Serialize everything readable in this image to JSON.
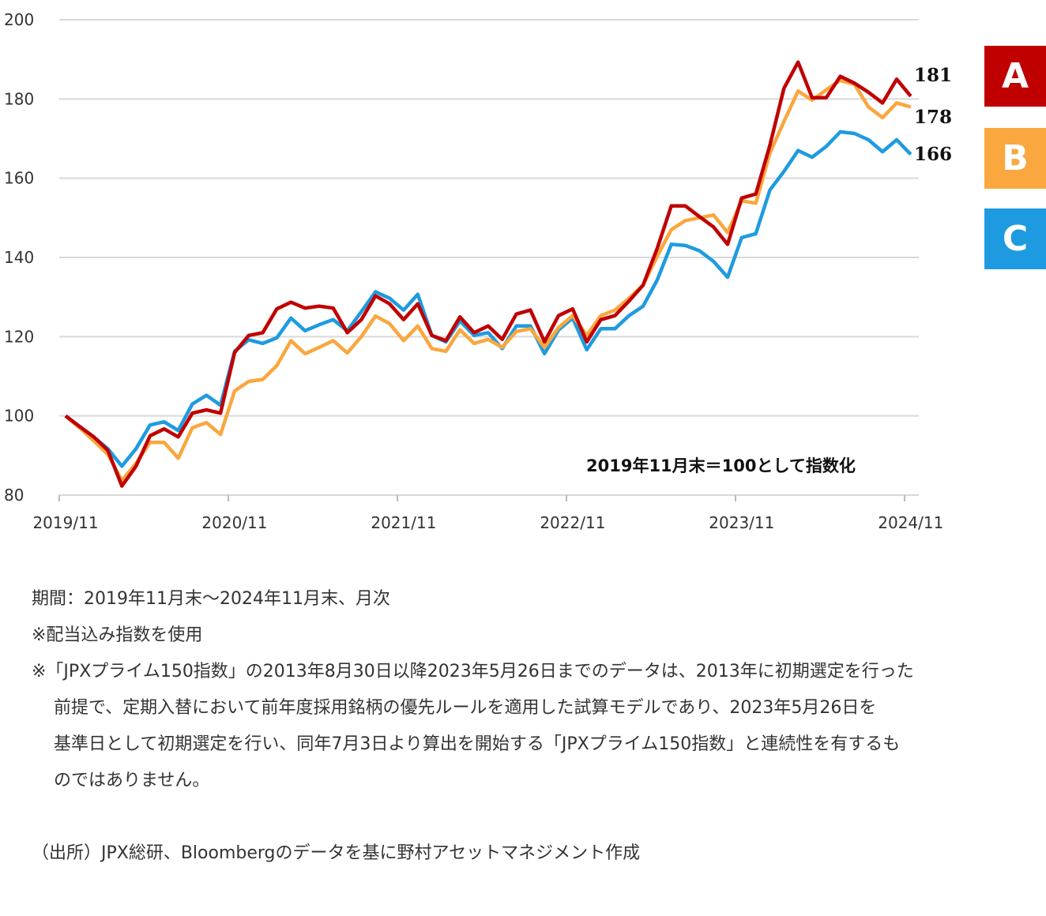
{
  "chart_data": {
    "type": "line",
    "title": "",
    "xlabel": "",
    "ylabel": "",
    "ylim": [
      80,
      200
    ],
    "yticks": [
      "80",
      "100",
      "120",
      "140",
      "160",
      "180",
      "200"
    ],
    "xticks": [
      "2019/11",
      "2020/11",
      "2021/11",
      "2022/11",
      "2023/11",
      "2024/11"
    ],
    "x_start": "2019/11",
    "x_end": "2024/11",
    "frequency": "monthly",
    "grid": true,
    "annotation": "2019年11月末＝100として指数化",
    "legend_placement": "right",
    "series": [
      {
        "name": "A",
        "color": "#C00000",
        "end_label": "181",
        "values": [
          100,
          97.3,
          94.7,
          91.3,
          82.3,
          87.3,
          95,
          96.7,
          94.7,
          100.7,
          101.5,
          100.7,
          116,
          120.3,
          121,
          127,
          128.7,
          127.2,
          127.7,
          127.2,
          121,
          124.3,
          130.3,
          128.3,
          124.3,
          128.3,
          120.3,
          119,
          125,
          121,
          122.7,
          119.3,
          125.7,
          126.7,
          118.7,
          125.3,
          127,
          118.7,
          124.3,
          125.3,
          129,
          133,
          142.3,
          153,
          153,
          150.3,
          147.7,
          143.3,
          155,
          156,
          168.3,
          182.7,
          189.3,
          180.3,
          180.3,
          185.7,
          184,
          181.7,
          179,
          185,
          180.7
        ]
      },
      {
        "name": "B",
        "color": "#F9A73E",
        "end_label": "178",
        "values": [
          100,
          97,
          93.7,
          90.3,
          83.7,
          88,
          93.3,
          93.3,
          89.3,
          97,
          98.3,
          95.3,
          106.3,
          108.7,
          109.2,
          112.7,
          119,
          115.7,
          117.3,
          119,
          115.9,
          120,
          125.2,
          123.3,
          119,
          122.7,
          117,
          116.3,
          121.7,
          118.3,
          119.3,
          117.3,
          121.3,
          122,
          117.3,
          122.3,
          125.3,
          120.3,
          125.3,
          126.7,
          129.7,
          133,
          140.3,
          147,
          149.3,
          150,
          150.7,
          146.3,
          154.3,
          153.7,
          166.3,
          174.3,
          182,
          179.7,
          182.3,
          184.7,
          183.7,
          178,
          175.3,
          179,
          178
        ]
      },
      {
        "name": "C",
        "color": "#1E9BE0",
        "end_label": "166",
        "values": [
          100,
          97.3,
          94.7,
          91.7,
          87.3,
          91.7,
          97.7,
          98.5,
          96.3,
          103,
          105.2,
          102.7,
          116.3,
          119.2,
          118.3,
          119.7,
          124.7,
          121.5,
          123,
          124.3,
          121.5,
          126.3,
          131.3,
          129.7,
          126.7,
          130.7,
          120.3,
          118.7,
          124,
          120.3,
          121,
          117,
          122.7,
          122.7,
          115.7,
          121.7,
          124.7,
          116.7,
          122,
          122,
          125.3,
          127.7,
          134.3,
          143.3,
          143,
          141.7,
          139,
          135,
          145,
          146,
          157,
          161.7,
          167,
          165.3,
          168,
          171.7,
          171.3,
          169.7,
          166.7,
          169.7,
          166
        ]
      }
    ]
  },
  "notes": {
    "period": "期間：2019年11月末～2024年11月末、月次",
    "dividend": "※配当込み指数を使用",
    "disclaimer_lines": [
      "※「JPXプライム150指数」の2013年8月30日以降2023年5月26日までのデータは、2013年に初期選定を行った",
      "前提で、定期入替において前年度採用銘柄の優先ルールを適用した試算モデルであり、2023年5月26日を",
      "基準日として初期選定を行い、同年7月3日より算出を開始する「JPXプライム150指数」と連続性を有するも",
      "のではありません。"
    ],
    "source": "（出所）JPX総研、Bloombergのデータを基に野村アセットマネジメント作成"
  }
}
